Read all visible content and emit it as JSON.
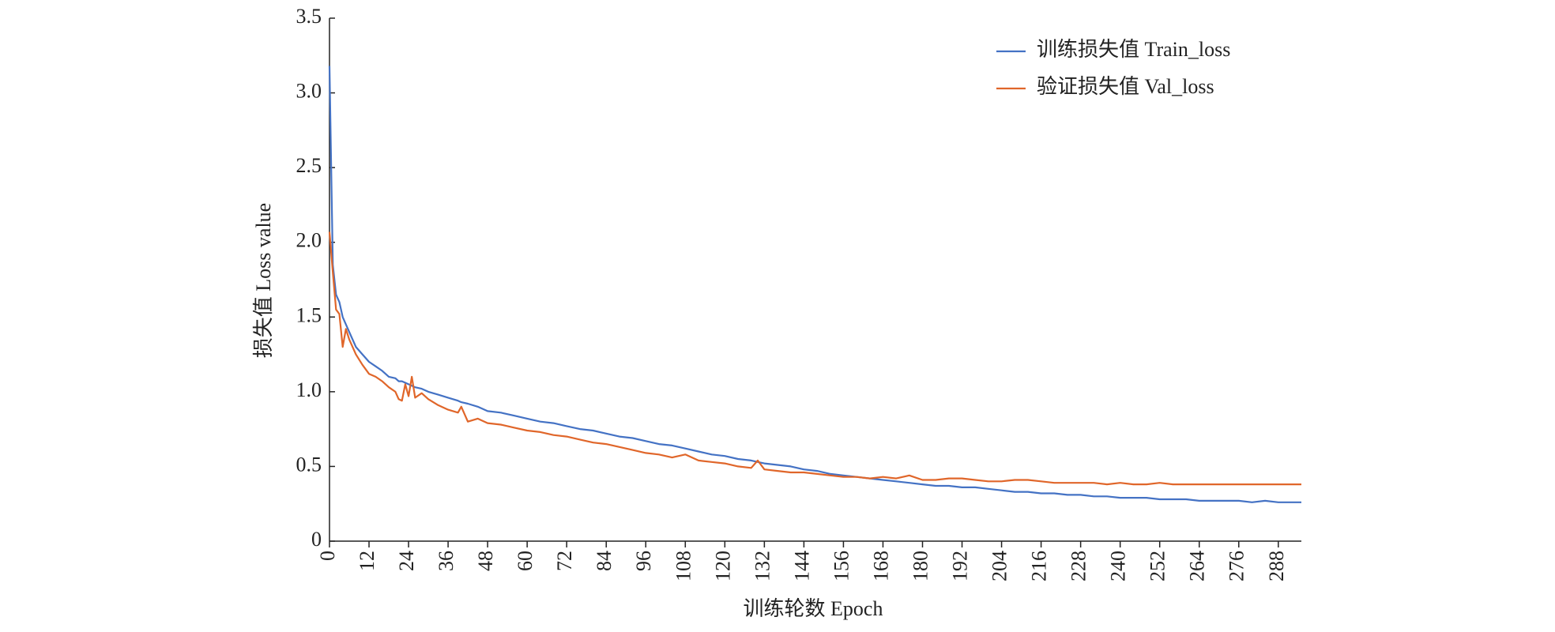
{
  "chart_data": {
    "type": "line",
    "x_label": "训练轮数 Epoch",
    "y_label": "损失值 Loss value",
    "x": [
      0,
      1,
      2,
      3,
      4,
      5,
      6,
      8,
      10,
      12,
      14,
      16,
      18,
      20,
      21,
      22,
      23,
      24,
      25,
      26,
      28,
      30,
      33,
      36,
      39,
      40,
      42,
      45,
      48,
      52,
      56,
      60,
      64,
      68,
      72,
      76,
      80,
      84,
      88,
      92,
      96,
      100,
      104,
      108,
      112,
      116,
      120,
      124,
      128,
      130,
      132,
      136,
      140,
      144,
      148,
      152,
      156,
      160,
      164,
      168,
      172,
      176,
      180,
      184,
      188,
      192,
      196,
      200,
      204,
      208,
      212,
      216,
      220,
      224,
      228,
      232,
      236,
      240,
      244,
      248,
      252,
      256,
      260,
      264,
      268,
      272,
      276,
      280,
      284,
      288,
      292,
      295
    ],
    "series": [
      {
        "name": "训练损失值 Train_loss",
        "color": "#4472c4",
        "values": [
          3.18,
          1.85,
          1.65,
          1.6,
          1.5,
          1.45,
          1.4,
          1.3,
          1.25,
          1.2,
          1.17,
          1.14,
          1.1,
          1.09,
          1.07,
          1.07,
          1.06,
          1.05,
          1.04,
          1.03,
          1.02,
          1.0,
          0.98,
          0.96,
          0.94,
          0.93,
          0.92,
          0.9,
          0.87,
          0.86,
          0.84,
          0.82,
          0.8,
          0.79,
          0.77,
          0.75,
          0.74,
          0.72,
          0.7,
          0.69,
          0.67,
          0.65,
          0.64,
          0.62,
          0.6,
          0.58,
          0.57,
          0.55,
          0.54,
          0.53,
          0.52,
          0.51,
          0.5,
          0.48,
          0.47,
          0.45,
          0.44,
          0.43,
          0.42,
          0.41,
          0.4,
          0.39,
          0.38,
          0.37,
          0.37,
          0.36,
          0.36,
          0.35,
          0.34,
          0.33,
          0.33,
          0.32,
          0.32,
          0.31,
          0.31,
          0.3,
          0.3,
          0.29,
          0.29,
          0.29,
          0.28,
          0.28,
          0.28,
          0.27,
          0.27,
          0.27,
          0.27,
          0.26,
          0.27,
          0.26,
          0.26,
          0.26
        ]
      },
      {
        "name": "验证损失值 Val_loss",
        "color": "#e0662a",
        "values": [
          2.07,
          1.8,
          1.55,
          1.52,
          1.3,
          1.42,
          1.35,
          1.25,
          1.18,
          1.12,
          1.1,
          1.07,
          1.03,
          1.0,
          0.95,
          0.94,
          1.05,
          0.97,
          1.1,
          0.96,
          0.99,
          0.95,
          0.91,
          0.88,
          0.86,
          0.9,
          0.8,
          0.82,
          0.79,
          0.78,
          0.76,
          0.74,
          0.73,
          0.71,
          0.7,
          0.68,
          0.66,
          0.65,
          0.63,
          0.61,
          0.59,
          0.58,
          0.56,
          0.58,
          0.54,
          0.53,
          0.52,
          0.5,
          0.49,
          0.54,
          0.48,
          0.47,
          0.46,
          0.46,
          0.45,
          0.44,
          0.43,
          0.43,
          0.42,
          0.43,
          0.42,
          0.44,
          0.41,
          0.41,
          0.42,
          0.42,
          0.41,
          0.4,
          0.4,
          0.41,
          0.41,
          0.4,
          0.39,
          0.39,
          0.39,
          0.39,
          0.38,
          0.39,
          0.38,
          0.38,
          0.39,
          0.38,
          0.38,
          0.38,
          0.38,
          0.38,
          0.38,
          0.38,
          0.38,
          0.38,
          0.38,
          0.38
        ]
      }
    ],
    "xlim": [
      0,
      295
    ],
    "xticks": [
      0,
      12,
      24,
      36,
      48,
      60,
      72,
      84,
      96,
      108,
      120,
      132,
      144,
      156,
      168,
      180,
      192,
      204,
      216,
      228,
      240,
      252,
      264,
      276,
      288
    ],
    "ylim": [
      0,
      3.5
    ],
    "yticks": [
      0,
      0.5,
      {
        "value": 1,
        "label": "1.0"
      },
      1.5,
      {
        "value": 2,
        "label": "2.0"
      },
      2.5,
      {
        "value": 3,
        "label": "3.0"
      },
      3.5
    ],
    "grid": false,
    "legend": "upper right"
  }
}
